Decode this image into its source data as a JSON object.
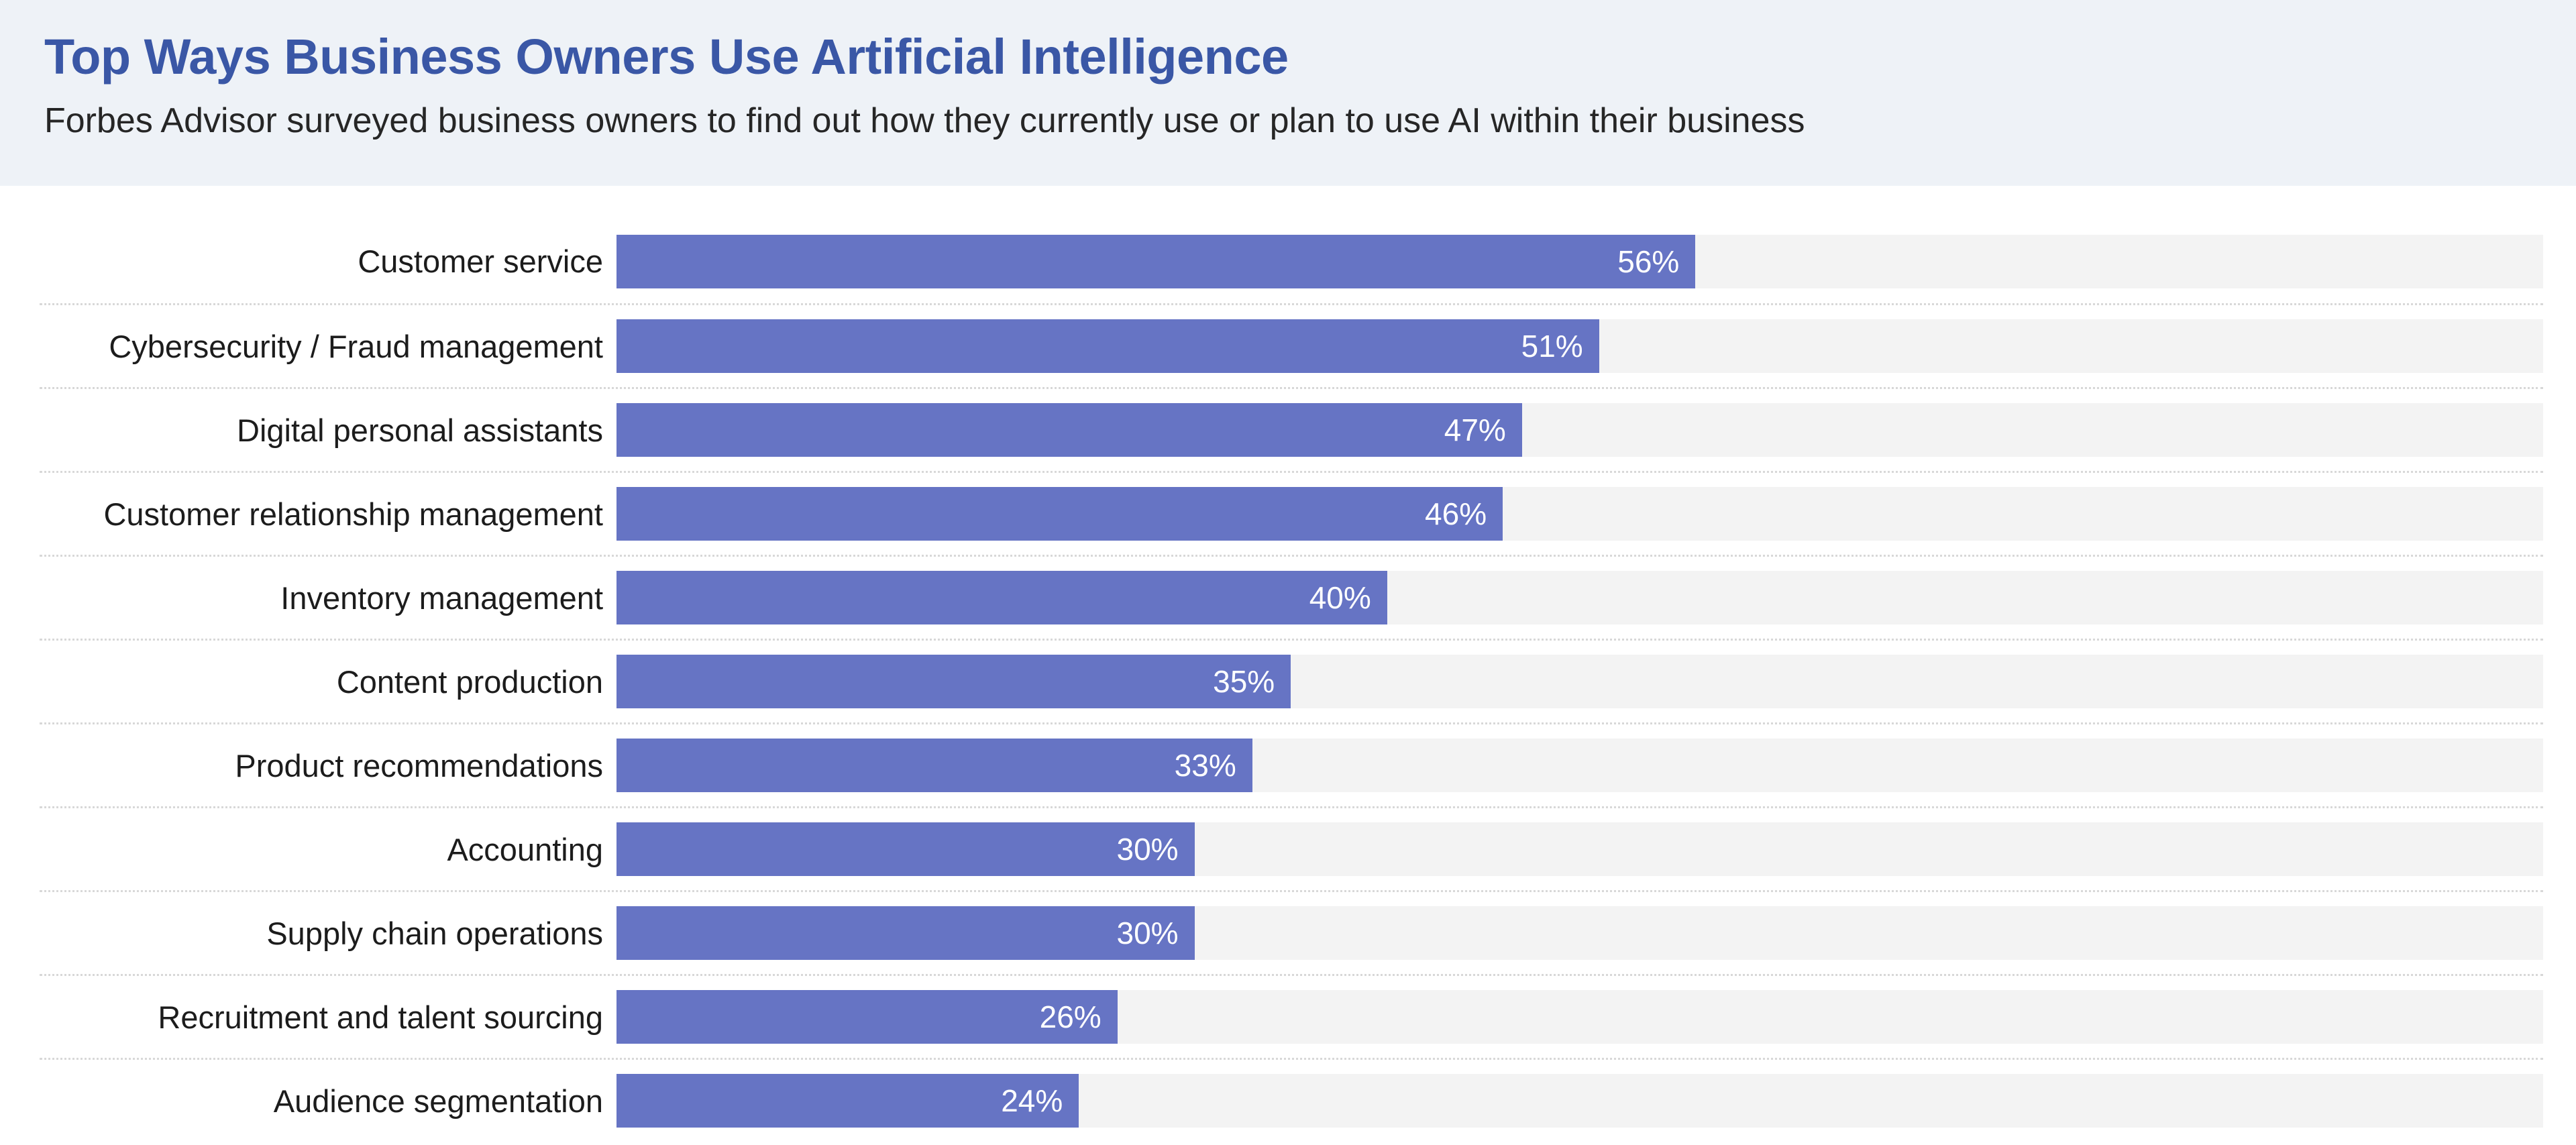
{
  "header": {
    "title": "Top Ways Business Owners Use Artificial Intelligence",
    "subtitle": "Forbes Advisor surveyed business owners to find out how they currently use or plan to use AI within their business"
  },
  "chart_data": {
    "type": "bar",
    "orientation": "horizontal",
    "title": "Top Ways Business Owners Use Artificial Intelligence",
    "subtitle": "Forbes Advisor surveyed business owners to find out how they currently use or plan to use AI within their business",
    "categories": [
      "Customer service",
      "Cybersecurity / Fraud management",
      "Digital personal assistants",
      "Customer relationship management",
      "Inventory management",
      "Content production",
      "Product recommendations",
      "Accounting",
      "Supply chain operations",
      "Recruitment and talent sourcing",
      "Audience segmentation"
    ],
    "values": [
      56,
      51,
      47,
      46,
      40,
      35,
      33,
      30,
      30,
      26,
      24
    ],
    "value_suffix": "%",
    "xlabel": "",
    "ylabel": "",
    "xlim": [
      0,
      100
    ],
    "grid": "dotted-row-separators",
    "legend": "none",
    "value_label_position": "inside-end",
    "bar_color": "#6674c4",
    "track_color": "#f3f3f3"
  },
  "colors": {
    "title": "#3a57a6",
    "header_background": "#eef2f7",
    "subtitle_text": "#262626",
    "category_text": "#1c1c1c",
    "value_text": "#ffffff",
    "separator": "#d8d8d8"
  }
}
